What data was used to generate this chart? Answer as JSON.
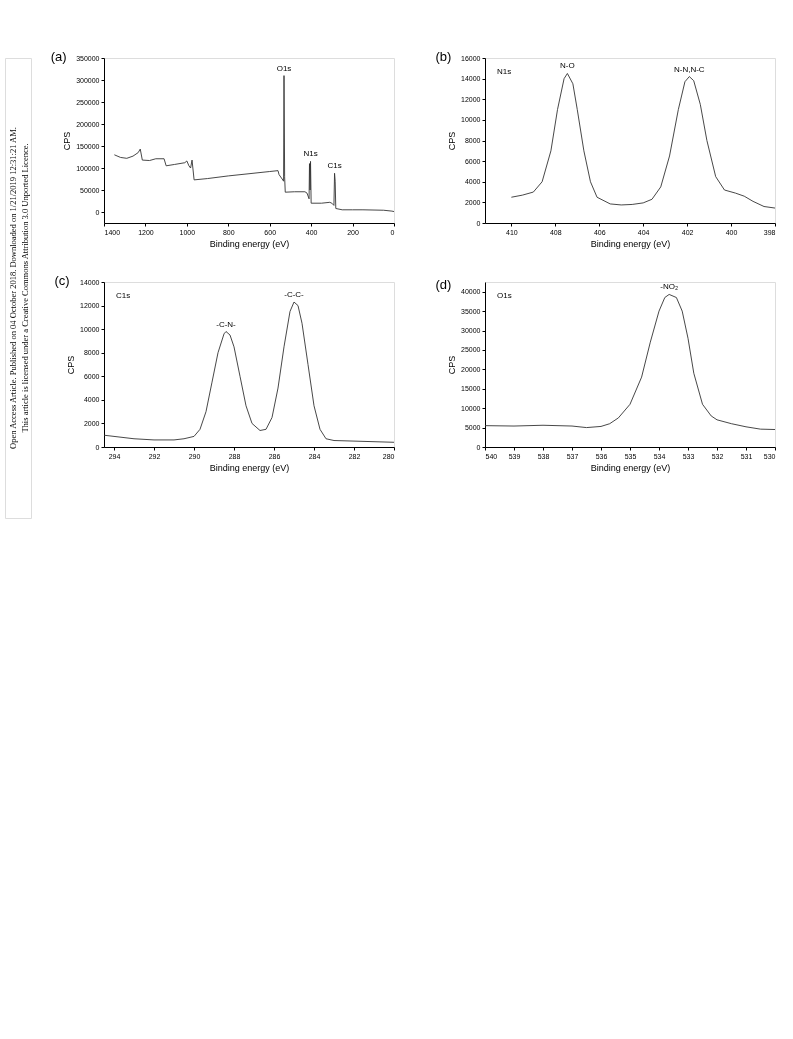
{
  "chart_data": [
    {
      "type": "line",
      "title": "(a)",
      "xlabel": "Binding energy (eV)",
      "ylabel": "CPS",
      "xlim": [
        1400,
        0
      ],
      "xticks": [
        1400,
        1200,
        1000,
        800,
        600,
        400,
        200,
        0
      ],
      "ylim": [
        -25000,
        350000
      ],
      "yticks": [
        0,
        50000,
        100000,
        150000,
        200000,
        250000,
        300000,
        350000
      ],
      "grid": false,
      "marker": "none",
      "series": [
        {
          "color": "#333333",
          "x": [
            1350,
            1320,
            1290,
            1260,
            1235,
            1225,
            1215,
            1180,
            1150,
            1110,
            1100,
            1060,
            1010,
            1000,
            990,
            982,
            975,
            965,
            900,
            800,
            700,
            600,
            560,
            555,
            540,
            533,
            531,
            528,
            525,
            480,
            430,
            420,
            410,
            408,
            405,
            403,
            400,
            350,
            310,
            300,
            290,
            287,
            284,
            281,
            250,
            200,
            150,
            50,
            10,
            0
          ],
          "values": [
            130000,
            124000,
            122000,
            127000,
            135000,
            143000,
            118000,
            117000,
            121000,
            121000,
            105000,
            108000,
            112000,
            116000,
            105000,
            100000,
            118000,
            73000,
            76000,
            82000,
            87000,
            92000,
            94000,
            85000,
            75000,
            70000,
            310000,
            80000,
            45000,
            46000,
            46000,
            43000,
            30000,
            110000,
            50000,
            115000,
            20000,
            20000,
            22000,
            20000,
            15000,
            88000,
            70000,
            8000,
            5000,
            5000,
            5000,
            4000,
            2000,
            1000
          ]
        }
      ],
      "annotations": [
        {
          "text": "O1s",
          "x": 531,
          "y": 310000
        },
        {
          "text": "N1s",
          "x": 403,
          "y": 115000
        },
        {
          "text": "C1s",
          "x": 287,
          "y": 88000
        }
      ]
    },
    {
      "type": "line",
      "title": "(b)",
      "xlabel": "Binding energy (eV)",
      "ylabel": "CPS",
      "xlim": [
        411.2,
        398
      ],
      "xticks": [
        410,
        408,
        406,
        404,
        402,
        400,
        398
      ],
      "ylim": [
        0,
        16000
      ],
      "yticks": [
        0,
        2000,
        4000,
        6000,
        8000,
        10000,
        12000,
        14000,
        16000
      ],
      "grid": false,
      "marker": "none",
      "series": [
        {
          "color": "#333333",
          "x": [
            410,
            409.5,
            409,
            408.6,
            408.2,
            407.9,
            407.6,
            407.45,
            407.2,
            407.0,
            406.7,
            406.4,
            406.1,
            405.5,
            405,
            404.5,
            404,
            403.6,
            403.2,
            402.8,
            402.4,
            402.1,
            401.9,
            401.7,
            401.4,
            401.1,
            400.7,
            400.3,
            399.8,
            399.4,
            399,
            398.5,
            398
          ],
          "values": [
            2500,
            2700,
            3000,
            4000,
            7000,
            11000,
            14000,
            14500,
            13500,
            11000,
            7000,
            4000,
            2500,
            1850,
            1750,
            1800,
            1950,
            2300,
            3500,
            6500,
            11000,
            13700,
            14200,
            13800,
            11500,
            8000,
            4500,
            3200,
            2900,
            2600,
            2100,
            1600,
            1450
          ]
        }
      ],
      "annotations": [
        "N1s",
        {
          "text": "N-O",
          "x": 407.45,
          "y": 14500
        },
        {
          "text": "N-N,N-C",
          "x": 401.9,
          "y": 14200
        }
      ]
    },
    {
      "type": "line",
      "title": "(c)",
      "xlabel": "Binding energy (eV)",
      "ylabel": "CPS",
      "xlim": [
        294.5,
        280
      ],
      "xticks": [
        294,
        292,
        290,
        288,
        286,
        284,
        282,
        280
      ],
      "ylim": [
        0,
        14000
      ],
      "yticks": [
        0,
        2000,
        4000,
        6000,
        8000,
        10000,
        12000,
        14000
      ],
      "grid": false,
      "marker": "none",
      "series": [
        {
          "color": "#333333",
          "x": [
            294.5,
            294,
            293,
            292,
            291,
            290.5,
            290,
            289.7,
            289.4,
            289.1,
            288.8,
            288.5,
            288.4,
            288.2,
            288,
            287.7,
            287.4,
            287.1,
            286.7,
            286.4,
            286.1,
            285.8,
            285.5,
            285.2,
            285.0,
            284.8,
            284.6,
            284.3,
            284,
            283.7,
            283.4,
            283,
            282,
            281,
            280
          ],
          "values": [
            1000,
            900,
            700,
            600,
            600,
            700,
            900,
            1500,
            3000,
            5500,
            8000,
            9600,
            9800,
            9500,
            8500,
            6000,
            3500,
            2000,
            1400,
            1500,
            2500,
            5000,
            8500,
            11500,
            12300,
            12000,
            10500,
            7000,
            3500,
            1500,
            700,
            550,
            500,
            450,
            400
          ]
        }
      ],
      "annotations": [
        "C1s",
        {
          "text": "-C-N-",
          "x": 288.4,
          "y": 9800
        },
        {
          "text": "-C-C-",
          "x": 285.0,
          "y": 12300
        }
      ]
    },
    {
      "type": "line",
      "title": "(d)",
      "xlabel": "Binding energy (eV)",
      "ylabel": "CPS",
      "xlim": [
        540,
        530
      ],
      "xticks": [
        540,
        539,
        538,
        537,
        536,
        535,
        534,
        533,
        532,
        531,
        530
      ],
      "ylim": [
        0,
        42500
      ],
      "yticks": [
        0,
        5000,
        10000,
        15000,
        20000,
        25000,
        30000,
        35000,
        40000
      ],
      "grid": false,
      "marker": "none",
      "series": [
        {
          "color": "#333333",
          "x": [
            540,
            539,
            538,
            537,
            536.5,
            536,
            535.7,
            535.4,
            535,
            534.6,
            534.3,
            534,
            533.8,
            533.65,
            533.4,
            533.2,
            533,
            532.8,
            532.5,
            532.2,
            532,
            531.5,
            531,
            530.5,
            530
          ],
          "values": [
            5500,
            5400,
            5600,
            5400,
            5000,
            5300,
            6000,
            7500,
            11000,
            18000,
            27000,
            35000,
            38500,
            39300,
            38500,
            35000,
            28000,
            19000,
            11000,
            8000,
            7000,
            6000,
            5200,
            4600,
            4500
          ]
        }
      ],
      "annotations": [
        "O1s",
        {
          "text": "-NO₂",
          "x": 533.65,
          "y": 39300
        }
      ]
    },
    {
      "type": "other",
      "annotations": [
        "Open Access Article. Published on 04 October 2018. Downloaded on 1/21/2019 12:31:21 AM.",
        "This article is licensed under a Creative Commons Attribution 3.0 Unported Licence."
      ]
    }
  ]
}
